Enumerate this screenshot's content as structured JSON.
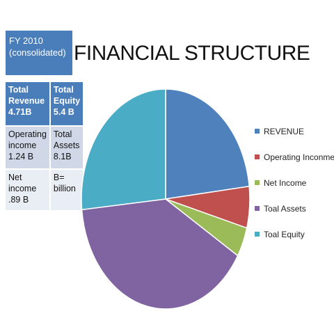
{
  "fy_box": {
    "line1": "FY 2010",
    "line2": "(consolidated)"
  },
  "title": "FINANCIAL STRUCTURE",
  "stats_table": {
    "rows": [
      [
        [
          "Total",
          "Revenue",
          "4.71B"
        ],
        [
          "Total",
          "Equity",
          "5.4 B"
        ]
      ],
      [
        [
          "Operating",
          "income",
          "1.24 B"
        ],
        [
          "Total",
          "Assets",
          "8.1B"
        ]
      ],
      [
        [
          "Net",
          "income",
          ".89 B"
        ],
        [
          "B=",
          "billion"
        ]
      ]
    ]
  },
  "chart_data": {
    "type": "pie",
    "title": "FINANCIAL STRUCTURE",
    "start_angle_deg": 0,
    "direction": "clockwise",
    "slices": [
      {
        "label": "REVENUE",
        "value": 4.71,
        "color": "#4f81bd"
      },
      {
        "label": "Operating Inconme",
        "value": 1.24,
        "color": "#c0504d"
      },
      {
        "label": "Net Income",
        "value": 0.89,
        "color": "#9bbb59"
      },
      {
        "label": "Toal Assets",
        "value": 8.1,
        "color": "#8064a2"
      },
      {
        "label": "Toal Equity",
        "value": 5.4,
        "color": "#4bacc6"
      }
    ],
    "legend_placement": "right"
  }
}
